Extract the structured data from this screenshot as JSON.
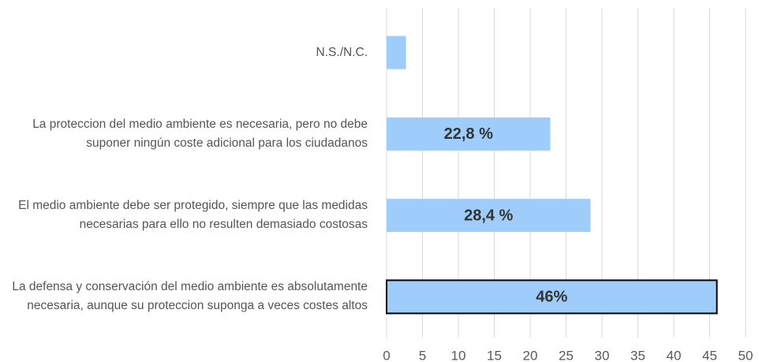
{
  "chart_data": {
    "type": "barh",
    "categories": [
      "N.S./N.C.",
      "La proteccion del medio ambiente es necesaria, pero no debe suponer ningún coste adicional para los ciudadanos",
      "El medio ambiente debe ser protegido, siempre que las medidas necesarias para ello no resulten demasiado costosas",
      "La defensa y conservación del medio ambiente es absolutamente necesaria, aunque su proteccion suponga a veces costes altos"
    ],
    "values": [
      2.7,
      22.8,
      28.4,
      46
    ],
    "value_labels": [
      null,
      "22,8 %",
      "28,4 %",
      "46%"
    ],
    "color": "#9fcdfb",
    "edgecolors": [
      null,
      null,
      null,
      "#000000"
    ],
    "xlim": [
      0,
      50
    ],
    "xticks": [
      0,
      5,
      10,
      15,
      20,
      25,
      30,
      35,
      40,
      45,
      50
    ],
    "grid": true
  }
}
